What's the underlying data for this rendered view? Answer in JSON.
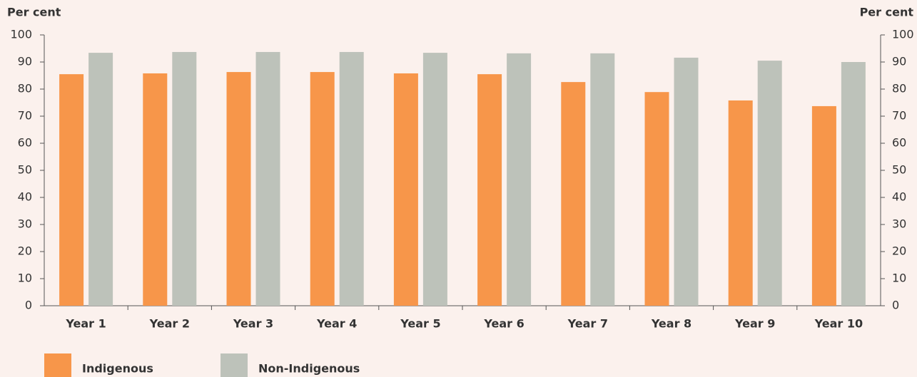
{
  "chart_data": {
    "type": "bar",
    "y_label": "Per cent",
    "y2_label": "Per cent",
    "categories": [
      "Year 1",
      "Year 2",
      "Year 3",
      "Year 4",
      "Year 5",
      "Year 6",
      "Year 7",
      "Year 8",
      "Year 9",
      "Year 10"
    ],
    "series": [
      {
        "name": "Indigenous",
        "color": "#f7964a",
        "values": [
          85.5,
          85.8,
          86.3,
          86.3,
          85.8,
          85.5,
          82.6,
          78.9,
          75.8,
          73.7
        ]
      },
      {
        "name": "Non-Indigenous",
        "color": "#bdc2ba",
        "values": [
          93.4,
          93.7,
          93.7,
          93.7,
          93.4,
          93.2,
          93.2,
          91.6,
          90.5,
          90.0
        ]
      }
    ],
    "ylim": [
      0,
      100
    ],
    "yticks": [
      0,
      10,
      20,
      30,
      40,
      50,
      60,
      70,
      80,
      90,
      100
    ],
    "y2lim": [
      0,
      100
    ],
    "y2ticks": [
      0,
      10,
      20,
      30,
      40,
      50,
      60,
      70,
      80,
      90,
      100
    ],
    "grid": false
  }
}
